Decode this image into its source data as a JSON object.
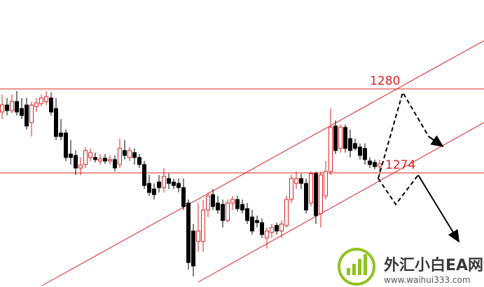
{
  "chart_data": {
    "type": "candlestick",
    "ylim": [
      1265.85,
      1286.35
    ],
    "levels": [
      1280,
      1274
    ],
    "level_color": "#e02020",
    "up_color": "#e02020",
    "down_color": "#000000",
    "candles": {
      "open": [
        1278.35,
        1278.85,
        1278.45,
        1279.1,
        1278.6,
        1278.85,
        1277.6,
        1278.75,
        1278.95,
        1279.1,
        1279.35,
        1278.6,
        1276.85,
        1276.85,
        1275.35,
        1275.25,
        1274.35,
        1274.6,
        1275.1,
        1275.1,
        1274.85,
        1275.05,
        1274.85,
        1274.95,
        1274.6,
        1275.6,
        1275.1,
        1275.45,
        1275.1,
        1274.6,
        1273.25,
        1272.85,
        1273.35,
        1272.95,
        1273.6,
        1273.35,
        1273.25,
        1272.95,
        1271.85,
        1269.85,
        1269.1,
        1269.1,
        1271.35,
        1272.45,
        1271.85,
        1271.75,
        1270.6,
        1271.85,
        1272.1,
        1271.75,
        1271.45,
        1270.85,
        1270.6,
        1270.45,
        1269.35,
        1269.75,
        1270.25,
        1269.85,
        1270.25,
        1272.1,
        1273.25,
        1273.6,
        1273.25,
        1271.85,
        1273.95,
        1271.1,
        1272.35,
        1274.1,
        1277.35,
        1275.75,
        1277.25,
        1276.45,
        1276.1,
        1275.85,
        1275.75,
        1274.85,
        1274.75,
        1274.45
      ],
      "high": [
        1279.6,
        1279.35,
        1279.6,
        1279.85,
        1279.35,
        1279.35,
        1279.1,
        1279.35,
        1279.6,
        1279.85,
        1279.75,
        1279.35,
        1277.85,
        1277.1,
        1276.35,
        1275.6,
        1275.1,
        1275.85,
        1275.75,
        1275.45,
        1275.35,
        1275.35,
        1275.25,
        1275.25,
        1276.45,
        1276.35,
        1275.85,
        1275.75,
        1275.35,
        1274.85,
        1273.85,
        1273.25,
        1273.85,
        1274.35,
        1273.95,
        1273.6,
        1273.6,
        1273.6,
        1272.1,
        1270.35,
        1271.85,
        1272.1,
        1272.6,
        1272.85,
        1272.35,
        1272.1,
        1272.1,
        1272.35,
        1272.35,
        1272.1,
        1271.85,
        1271.35,
        1270.95,
        1270.75,
        1270.1,
        1270.35,
        1270.45,
        1270.6,
        1272.35,
        1273.85,
        1274.1,
        1273.95,
        1273.6,
        1274.1,
        1274.1,
        1274.1,
        1274.85,
        1278.6,
        1277.75,
        1277.45,
        1277.45,
        1277.1,
        1276.45,
        1276.1,
        1276.1,
        1275.1,
        1274.95,
        1274.95
      ],
      "low": [
        1277.85,
        1278.1,
        1278.25,
        1278.1,
        1277.85,
        1277.1,
        1276.6,
        1278.35,
        1278.75,
        1278.85,
        1278.1,
        1276.35,
        1276.35,
        1274.85,
        1274.6,
        1273.85,
        1273.85,
        1274.35,
        1274.85,
        1274.75,
        1274.6,
        1274.65,
        1274.6,
        1274.1,
        1274.35,
        1274.95,
        1274.85,
        1274.6,
        1274.35,
        1272.85,
        1272.35,
        1272.1,
        1272.6,
        1272.6,
        1272.85,
        1272.85,
        1272.6,
        1271.35,
        1267.1,
        1266.6,
        1268.35,
        1268.35,
        1270.85,
        1271.35,
        1271.1,
        1270.1,
        1270.45,
        1271.35,
        1271.25,
        1271.1,
        1270.35,
        1269.6,
        1270.1,
        1269.35,
        1268.6,
        1269.35,
        1269.6,
        1269.35,
        1270.1,
        1271.85,
        1272.85,
        1272.85,
        1271.1,
        1271.6,
        1270.35,
        1270.1,
        1272.1,
        1273.85,
        1275.35,
        1275.45,
        1275.45,
        1275.1,
        1275.6,
        1274.95,
        1274.6,
        1274.35,
        1274.25,
        1273.85
      ],
      "close": [
        1278.85,
        1278.45,
        1279.1,
        1278.35,
        1278.1,
        1277.35,
        1278.85,
        1279.0,
        1279.35,
        1279.45,
        1278.35,
        1276.6,
        1276.6,
        1275.1,
        1275.1,
        1274.35,
        1274.55,
        1275.6,
        1275.45,
        1274.95,
        1275.0,
        1274.85,
        1274.95,
        1274.35,
        1275.75,
        1275.25,
        1275.6,
        1275.1,
        1274.6,
        1273.1,
        1272.6,
        1272.45,
        1272.95,
        1273.75,
        1273.25,
        1273.1,
        1272.95,
        1271.6,
        1267.6,
        1267.35,
        1269.85,
        1271.35,
        1272.35,
        1271.6,
        1271.35,
        1270.6,
        1271.85,
        1272.1,
        1271.45,
        1271.35,
        1270.6,
        1269.85,
        1270.45,
        1269.6,
        1269.85,
        1270.1,
        1269.85,
        1270.35,
        1272.1,
        1273.6,
        1273.6,
        1273.25,
        1271.35,
        1273.95,
        1270.95,
        1273.85,
        1274.1,
        1277.25,
        1275.6,
        1277.25,
        1275.75,
        1275.6,
        1275.75,
        1275.25,
        1274.95,
        1274.6,
        1274.45,
        1274.65
      ]
    }
  },
  "watermark": {
    "brand": "外汇小白EA网",
    "url": "www.waihui333.com"
  }
}
